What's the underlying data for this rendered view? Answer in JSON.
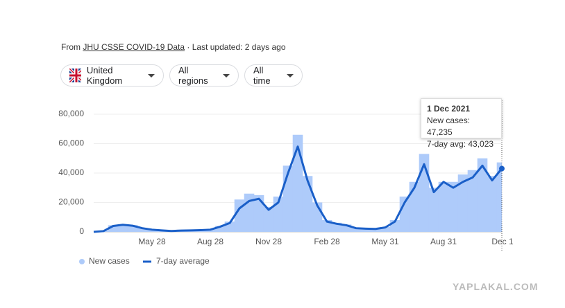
{
  "header": {
    "prefix": "From",
    "source": "JHU CSSE COVID-19 Data",
    "updated": "· Last updated: 2 days ago"
  },
  "filters": [
    "United Kingdom",
    "All regions",
    "All time"
  ],
  "watermark": "YAPLAKAL.COM",
  "tooltip": {
    "date": "1 Dec 2021",
    "new_cases": "New cases: 47,235",
    "avg": "7-day avg: 43,023"
  },
  "chart_data": {
    "type": "bar-line",
    "categories": [
      null,
      null,
      null,
      null,
      null,
      null,
      "May 28",
      null,
      null,
      null,
      null,
      null,
      "Aug 28",
      null,
      null,
      null,
      null,
      null,
      "Nov 28",
      null,
      null,
      null,
      null,
      null,
      "Feb 28",
      null,
      null,
      null,
      null,
      null,
      "May 31",
      null,
      null,
      null,
      null,
      null,
      "Aug 31",
      null,
      null,
      null,
      null,
      null,
      "Dec 1"
    ],
    "series": [
      {
        "name": "New cases",
        "color": "#aecbfa",
        "values": [
          0,
          800,
          4500,
          5200,
          4600,
          2800,
          1700,
          1100,
          700,
          1000,
          1100,
          1300,
          1600,
          4000,
          7000,
          22000,
          26000,
          25000,
          17000,
          24000,
          45000,
          66000,
          38000,
          20000,
          8000,
          6200,
          5000,
          2800,
          2400,
          2100,
          3300,
          8000,
          24000,
          34000,
          53000,
          30000,
          34000,
          34000,
          39000,
          42000,
          50000,
          38000,
          47235
        ]
      },
      {
        "name": "7-day average",
        "color": "#1a5fc8",
        "values": [
          0,
          500,
          4000,
          4800,
          4200,
          2500,
          1500,
          1000,
          600,
          900,
          1000,
          1200,
          1500,
          3500,
          6000,
          16000,
          21000,
          22500,
          15000,
          20000,
          40000,
          58000,
          35000,
          18000,
          7000,
          5500,
          4500,
          2500,
          2200,
          2000,
          3000,
          7000,
          20000,
          30000,
          46000,
          27000,
          34000,
          30000,
          34000,
          37000,
          45000,
          35000,
          43023
        ]
      }
    ],
    "ylim": [
      0,
      80000
    ],
    "yticks": [
      0,
      {
        "value": 20000,
        "label": "20,000"
      },
      {
        "value": 40000,
        "label": "40,000"
      },
      {
        "value": 60000,
        "label": "60,000"
      },
      {
        "value": 80000,
        "label": "80,000"
      }
    ],
    "grid": true
  }
}
